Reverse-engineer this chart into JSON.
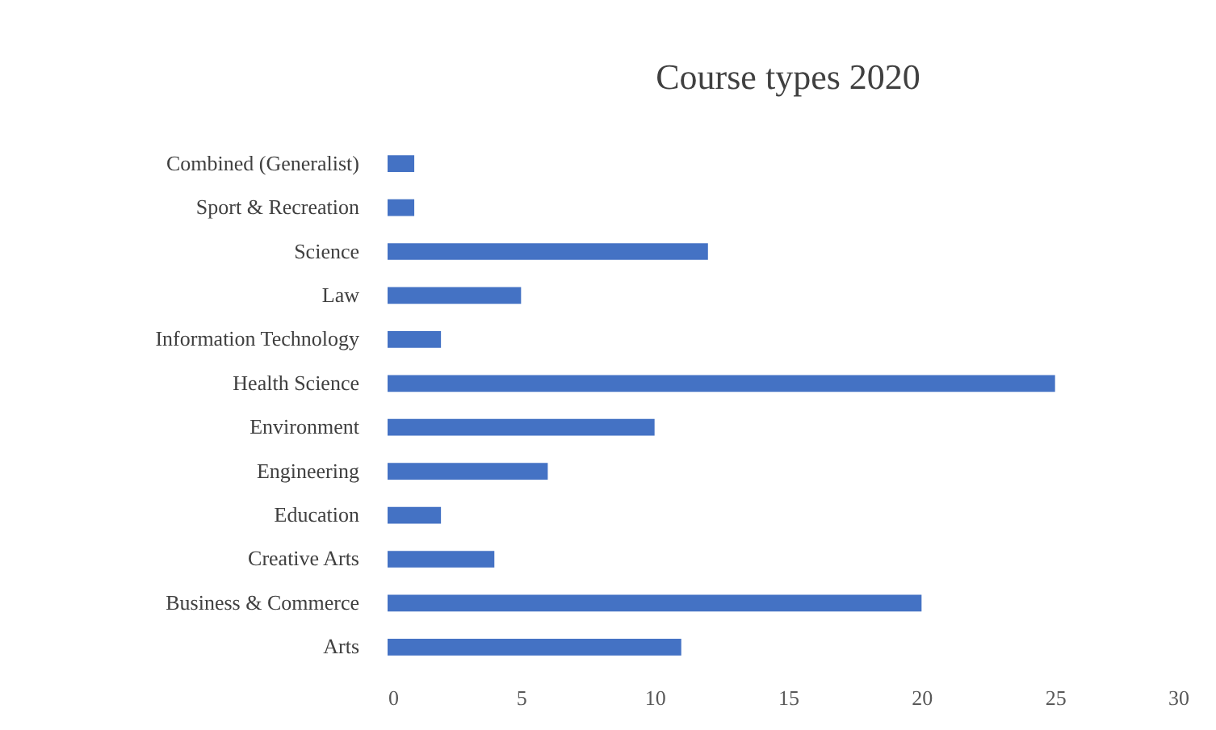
{
  "chart_data": {
    "type": "bar",
    "orientation": "horizontal",
    "title": "Course types 2020",
    "categories": [
      "Combined (Generalist)",
      "Sport & Recreation",
      "Science",
      "Law",
      "Information Technology",
      "Health Science",
      "Environment",
      "Engineering",
      "Education",
      "Creative Arts",
      "Business & Commerce",
      "Arts"
    ],
    "values": [
      1,
      1,
      12,
      5,
      2,
      25,
      10,
      6,
      2,
      4,
      20,
      11
    ],
    "color": "#4472c4",
    "xlim": [
      0,
      30
    ],
    "xticks": [
      0,
      5,
      10,
      15,
      20,
      25,
      30
    ],
    "grid": false
  }
}
